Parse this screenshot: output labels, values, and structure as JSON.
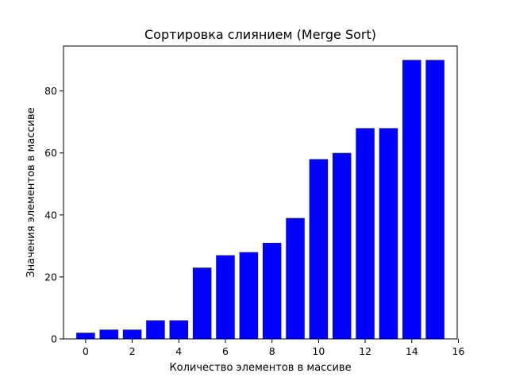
{
  "chart_data": {
    "type": "bar",
    "title": "Сортировка слиянием (Merge Sort)",
    "xlabel": "Количество элементов в массиве",
    "ylabel": "Значения элементов в массиве",
    "x": [
      0,
      1,
      2,
      3,
      4,
      5,
      6,
      7,
      8,
      9,
      10,
      11,
      12,
      13,
      14,
      15
    ],
    "values": [
      2,
      3,
      3,
      6,
      6,
      23,
      27,
      28,
      31,
      39,
      58,
      60,
      68,
      68,
      90,
      90
    ],
    "xlim": [
      -0.95,
      15.95
    ],
    "ylim": [
      0,
      94.5
    ],
    "xticks": [
      0,
      2,
      4,
      6,
      8,
      10,
      12,
      14,
      16
    ],
    "yticks": [
      0,
      20,
      40,
      60,
      80
    ],
    "bar_color": "#0000ff",
    "grid": false,
    "legend": "none"
  }
}
